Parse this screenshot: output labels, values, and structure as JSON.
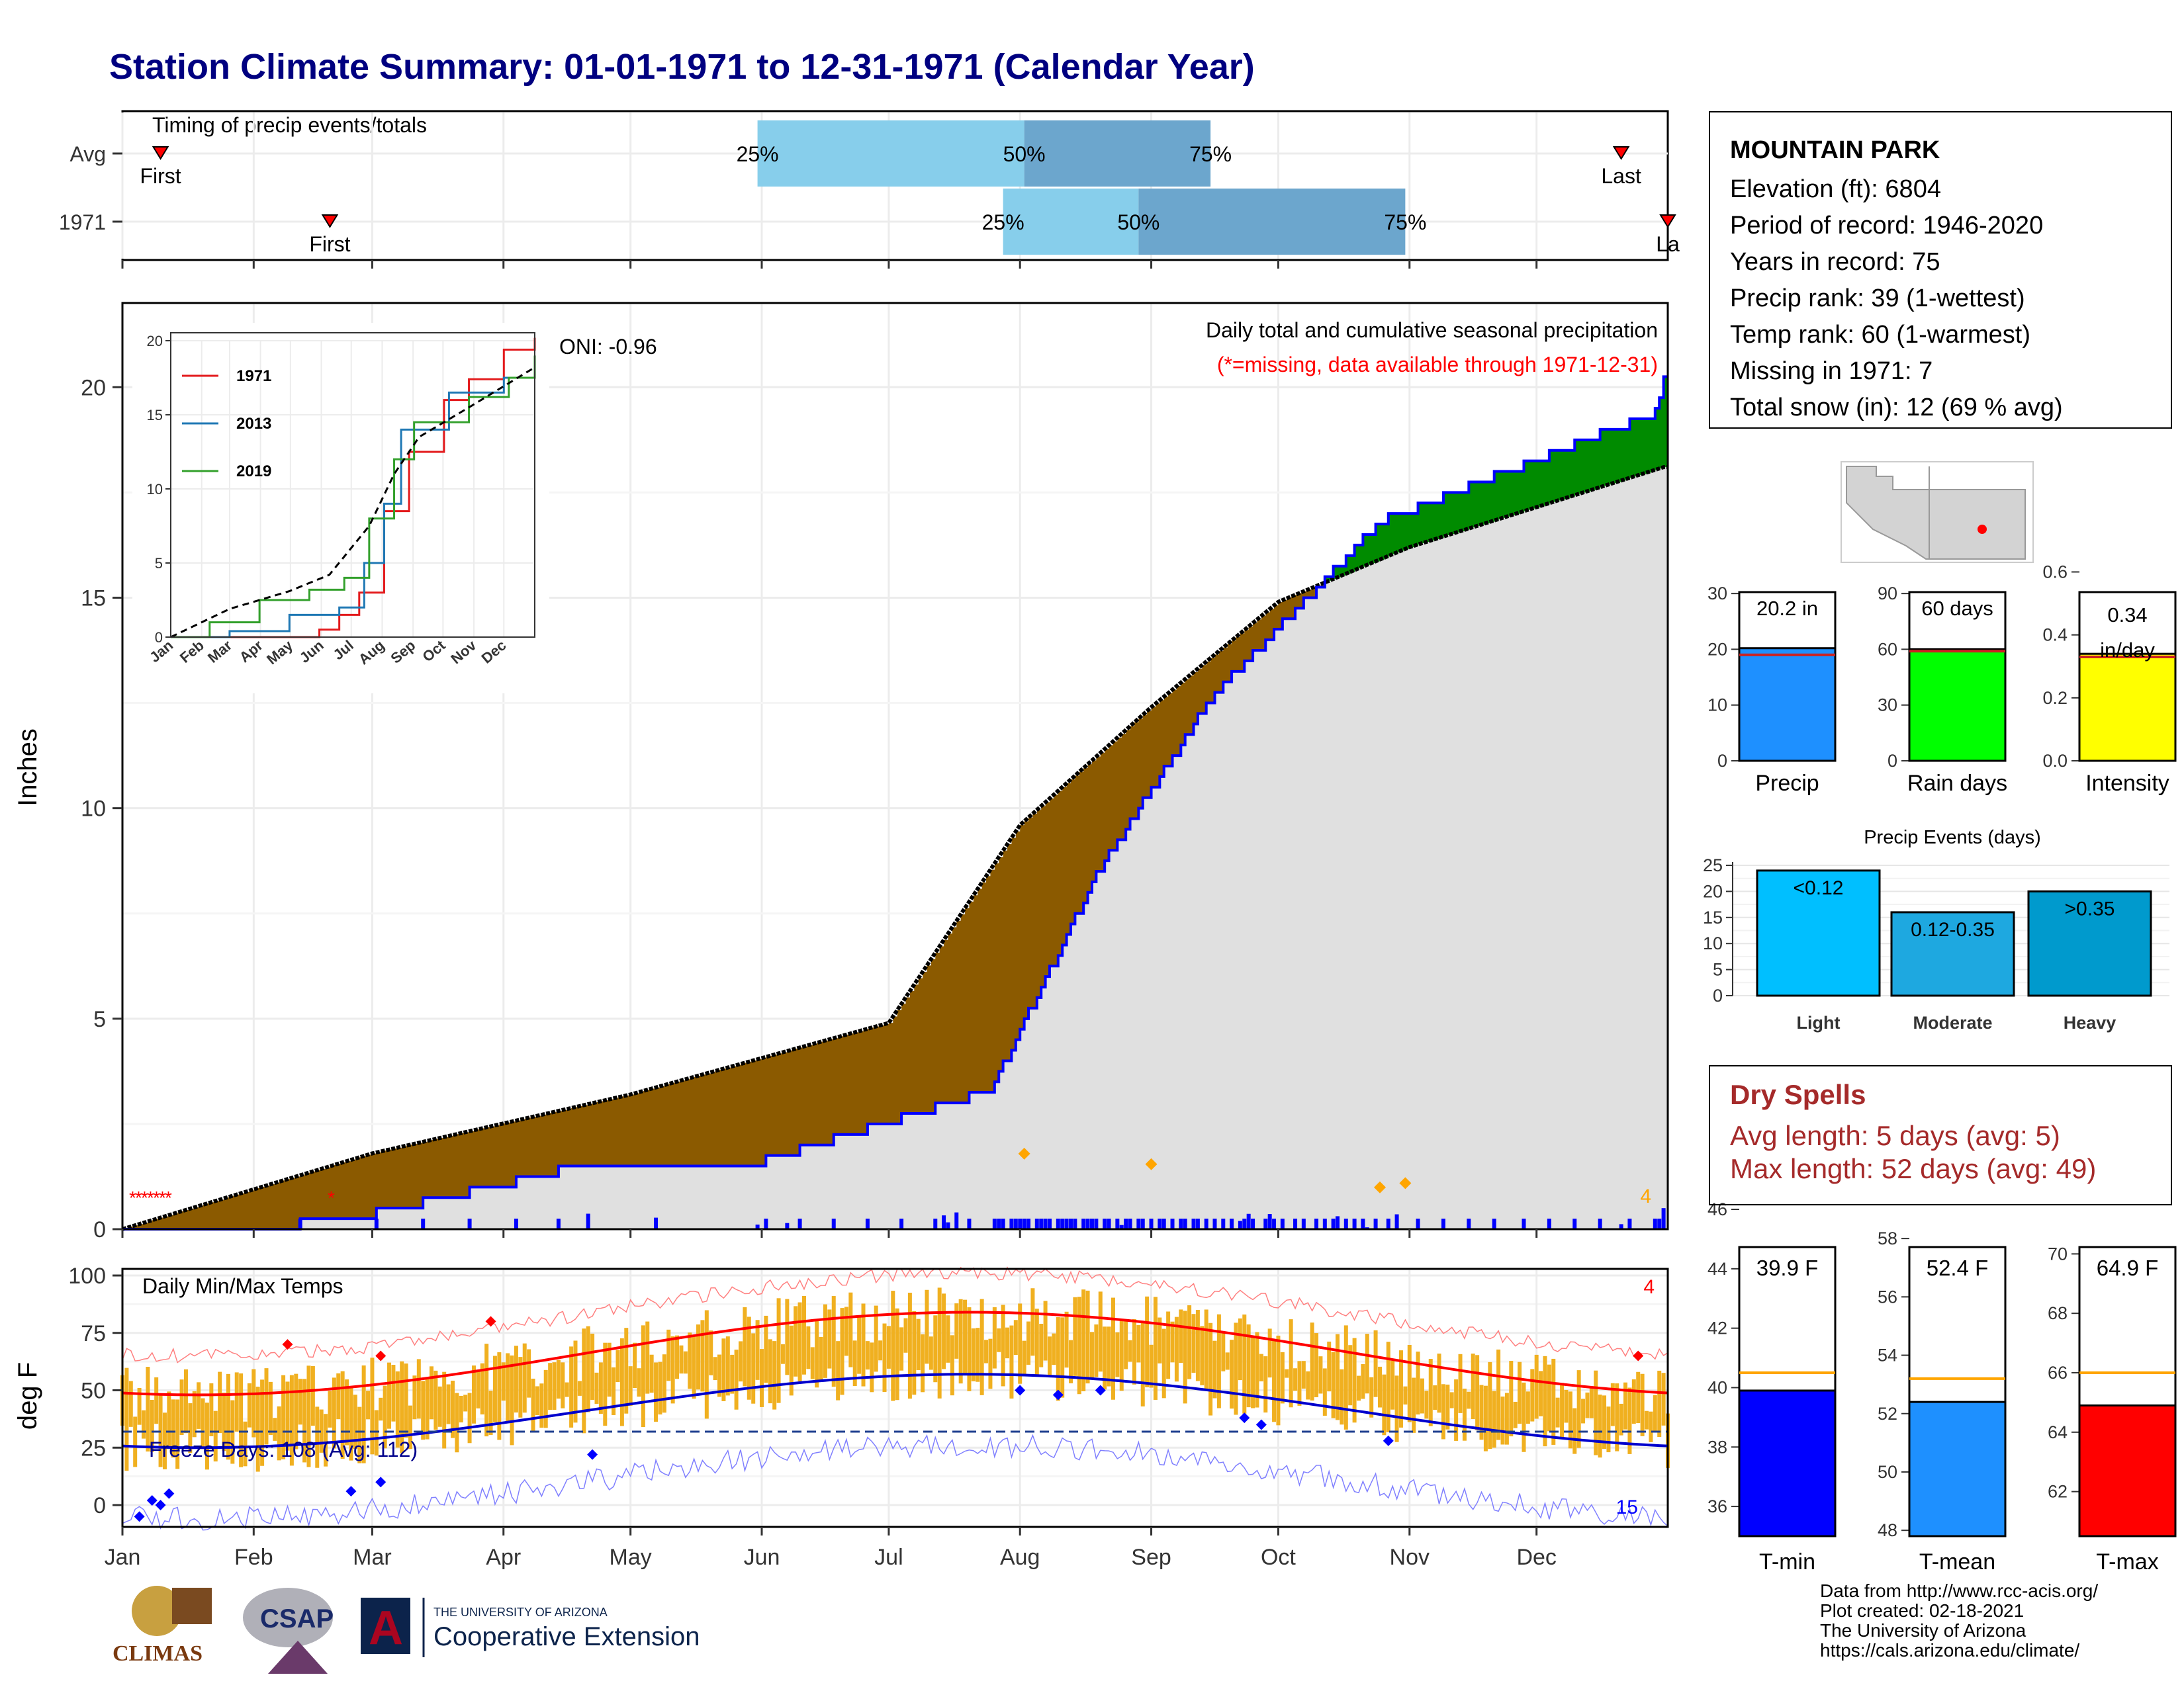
{
  "title": "Station Climate Summary: 01-01-1971 to 12-31-1971 (Calendar Year)",
  "timing": {
    "label": "Timing of precip events/totals",
    "rows": [
      {
        "name": "Avg",
        "first_doy": 10,
        "last_doy": 355,
        "p25_doy": 151,
        "p50_doy": 214,
        "p75_doy": 258,
        "first_label": "First",
        "last_label": "Last"
      },
      {
        "name": "1971",
        "first_doy": 50,
        "last_doy": 366,
        "p25_doy": 209,
        "p50_doy": 241,
        "p75_doy": 304,
        "first_label": "First",
        "last_label": "La"
      }
    ],
    "pct_labels": [
      "25%",
      "50%",
      "75%"
    ]
  },
  "precip_panel": {
    "ylabel": "Inches",
    "yticks": [
      "0",
      "5",
      "10",
      "15",
      "20"
    ],
    "oni": "ONI: -0.96",
    "title": "Daily total and cumulative seasonal precipitation",
    "subtitle": "(*=missing, data available through 1971-12-31)",
    "right_note": "4"
  },
  "inset": {
    "legend": [
      "1971",
      "2013",
      "2019"
    ],
    "yticks": [
      "0",
      "5",
      "10",
      "15",
      "20"
    ],
    "months": [
      "Jan",
      "Feb",
      "Mar",
      "Apr",
      "May",
      "Jun",
      "Jul",
      "Aug",
      "Sep",
      "Oct",
      "Nov",
      "Dec"
    ]
  },
  "temp_panel": {
    "ylabel": "deg F",
    "title": "Daily Min/Max Temps",
    "yticks": [
      "0",
      "25",
      "50",
      "75",
      "100"
    ],
    "freeze": "Freeze Days: 108 (Avg: 112)",
    "high_count": "4",
    "low_count": "15"
  },
  "months": [
    "Jan",
    "Feb",
    "Mar",
    "Apr",
    "May",
    "Jun",
    "Jul",
    "Aug",
    "Sep",
    "Oct",
    "Nov",
    "Dec"
  ],
  "station": {
    "name": "MOUNTAIN PARK",
    "lines": [
      "Elevation (ft): 6804",
      "Period of record: 1946-2020",
      "Years in record: 75",
      "Precip rank: 39 (1-wettest)",
      "Temp rank: 60 (1-warmest)",
      "Missing in 1971: 7",
      "Total snow (in): 12 (69 % avg)"
    ]
  },
  "mini_bars": [
    {
      "label": "Precip",
      "value_text": "20.2 in",
      "value": 20.2,
      "avg": 19.0,
      "ymax": 35,
      "ticks": [
        "0",
        "10",
        "20",
        "30"
      ],
      "color": "#1e90ff"
    },
    {
      "label": "Rain days",
      "value_text": "60 days",
      "value": 60,
      "avg": 59,
      "ymax": 105,
      "ticks": [
        "0",
        "30",
        "60",
        "90"
      ],
      "color": "#00ff00"
    },
    {
      "label": "Intensity",
      "value_text": "0.34 in/day",
      "value": 0.34,
      "avg": 0.33,
      "ymax": 0.62,
      "ticks": [
        "0.0",
        "0.2",
        "0.4",
        "0.6"
      ],
      "color": "#ffff00"
    }
  ],
  "precip_events": {
    "title": "Precip Events (days)",
    "yticks": [
      "0",
      "5",
      "10",
      "15",
      "20",
      "25"
    ],
    "bars": [
      {
        "label": "Light",
        "range": "<0.12",
        "value": 24,
        "color": "#00bfff"
      },
      {
        "label": "Moderate",
        "range": "0.12-0.35",
        "value": 16,
        "color": "#1ea8e0"
      },
      {
        "label": "Heavy",
        "range": ">0.35",
        "value": 20,
        "color": "#009acd"
      }
    ]
  },
  "dry_spells": {
    "title": "Dry Spells",
    "avg": "Avg length: 5 days (avg: 5)",
    "max": "Max length: 52 days (avg: 49)"
  },
  "temp_bars": [
    {
      "label": "T-min",
      "value_text": "39.9 F",
      "value": 39.9,
      "avg": 40.5,
      "ymin": 35,
      "ymax": 46,
      "ticks": [
        "36",
        "38",
        "40",
        "42",
        "44",
        "46"
      ],
      "color": "#0000ff"
    },
    {
      "label": "T-mean",
      "value_text": "52.4 F",
      "value": 52.4,
      "avg": 53.2,
      "ymin": 47.8,
      "ymax": 59,
      "ticks": [
        "48",
        "50",
        "52",
        "54",
        "56",
        "58"
      ],
      "color": "#1e90ff"
    },
    {
      "label": "T-max",
      "value_text": "64.9 F",
      "value": 64.9,
      "avg": 66.0,
      "ymin": 60.5,
      "ymax": 71.5,
      "ticks": [
        "62",
        "64",
        "66",
        "68",
        "70"
      ],
      "color": "#ff0000"
    }
  ],
  "credits": [
    "Data from http://www.rcc-acis.org/",
    "Plot created: 02-18-2021",
    "The University of Arizona",
    "https://cals.arizona.edu/climate/"
  ],
  "logos": {
    "climas": "CLIMAS",
    "csap": "CSAP",
    "ua_line1": "THE UNIVERSITY OF ARIZONA",
    "ua_line2": "Cooperative Extension"
  },
  "chart_data": {
    "type": "area",
    "title": "Daily total and cumulative seasonal precipitation",
    "ylabel": "Inches",
    "ylim": [
      0,
      22
    ],
    "series": [
      {
        "name": "1971",
        "x": [
          "01-01",
          "02-20",
          "04-15",
          "06-01",
          "07-25",
          "08-20",
          "09-15",
          "10-25",
          "12-29",
          "12-31"
        ],
        "values": [
          0.0,
          0.15,
          1.4,
          1.6,
          3.3,
          8.6,
          12.6,
          16.8,
          19.4,
          20.2
        ]
      },
      {
        "name": "",
        "x": [
          "01-01",
          "03-01",
          "05-01",
          "07-01",
          "08-01",
          "09-01",
          "10-01",
          "11-01",
          "12-31"
        ],
        "values": [
          0.0,
          1.8,
          3.2,
          4.9,
          9.6,
          12.4,
          14.9,
          16.2,
          18.1
        ]
      }
    ]
  }
}
